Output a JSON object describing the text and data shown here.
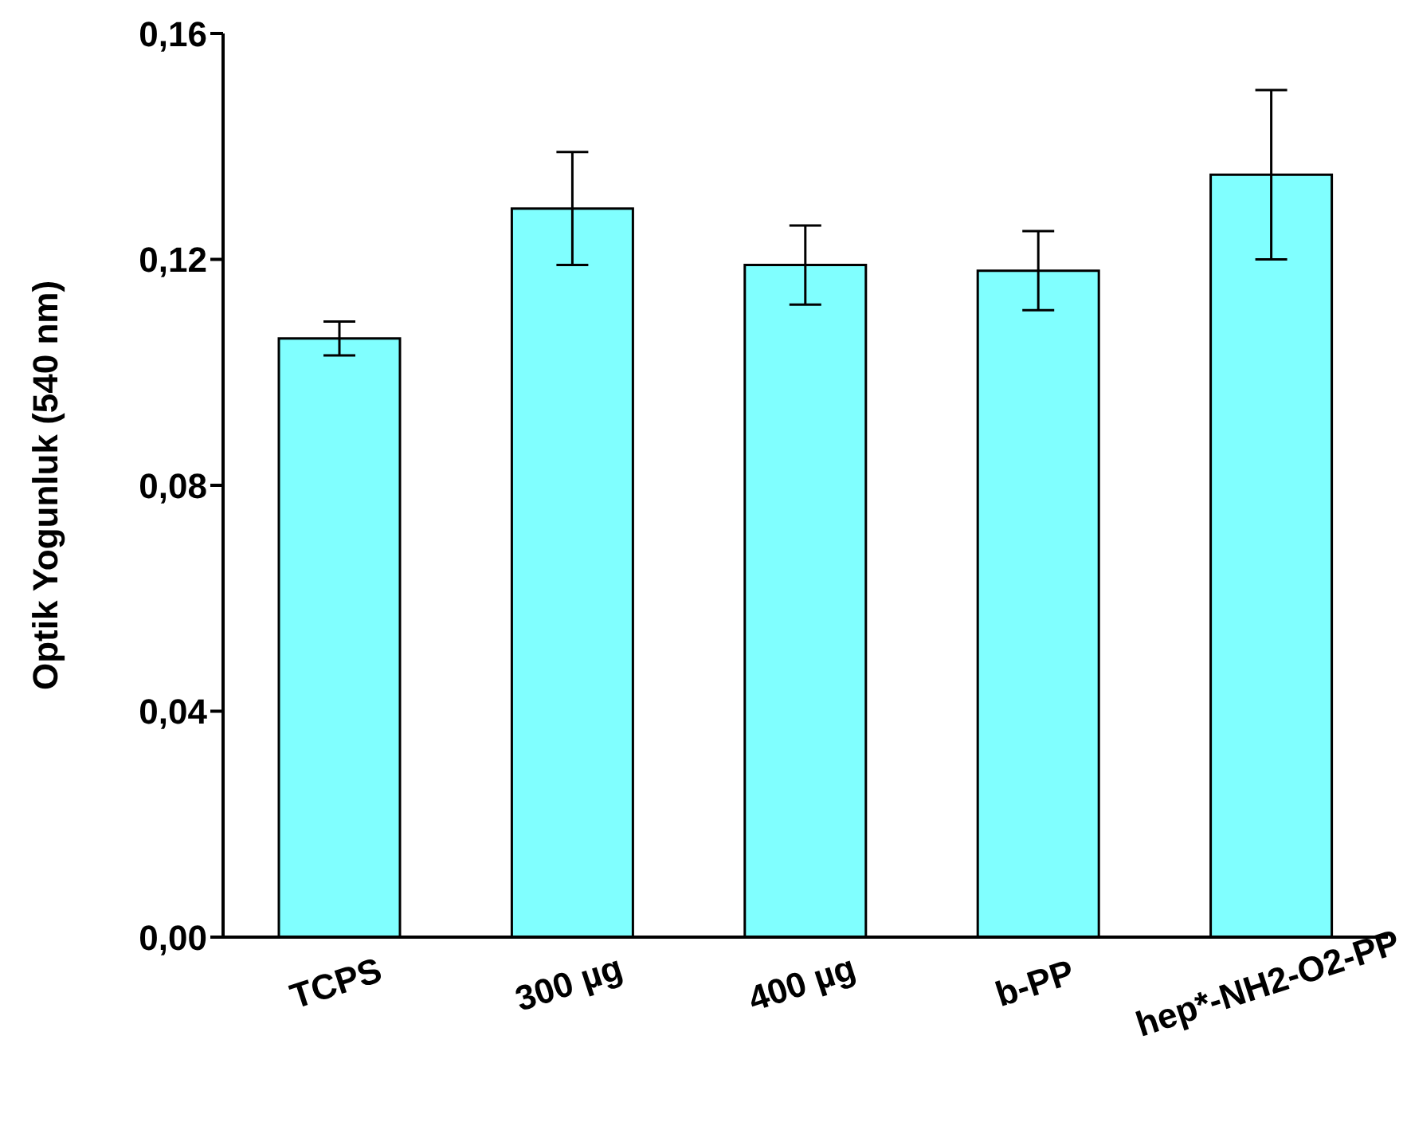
{
  "chart_data": {
    "type": "bar",
    "ylabel": "Optik Yogunluk (540 nm)",
    "categories": [
      "TCPS",
      "300 µg",
      "400 µg",
      "b-PP",
      "hep*-NH2-O2-PP"
    ],
    "values": [
      0.106,
      0.129,
      0.119,
      0.118,
      0.135
    ],
    "errors": [
      0.003,
      0.01,
      0.007,
      0.007,
      0.015
    ],
    "color": "#80ffff",
    "ylim": [
      0,
      0.16
    ],
    "yticks": [
      {
        "value": 0,
        "label": "0,00"
      },
      {
        "value": 0.04,
        "label": "0,04"
      },
      {
        "value": 0.08,
        "label": "0,08"
      },
      {
        "value": 0.12,
        "label": "0,12"
      },
      {
        "value": 0.16,
        "label": "0,16"
      }
    ],
    "grid": false,
    "legend": false
  }
}
